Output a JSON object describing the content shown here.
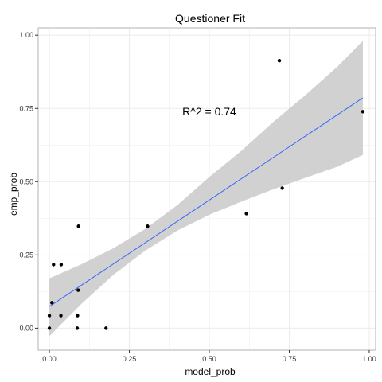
{
  "chart_data": {
    "type": "scatter",
    "title": "Questioner Fit",
    "xlabel": "model_prob",
    "ylabel": "emp_prob",
    "xlim": [
      -0.035,
      1.02
    ],
    "ylim": [
      -0.075,
      1.025
    ],
    "x_ticks": [
      0.0,
      0.25,
      0.5,
      0.75,
      1.0
    ],
    "x_tick_labels": [
      "0.00",
      "0.25",
      "0.50",
      "0.75",
      "1.00"
    ],
    "y_ticks": [
      0.0,
      0.25,
      0.5,
      0.75,
      1.0
    ],
    "y_tick_labels": [
      "0.00",
      "0.25",
      "0.50",
      "0.75",
      "1.00"
    ],
    "grid": true,
    "legend": "none",
    "points": [
      {
        "x": 0.0,
        "y": 0.0
      },
      {
        "x": 0.0,
        "y": 0.043
      },
      {
        "x": 0.008,
        "y": 0.087
      },
      {
        "x": 0.013,
        "y": 0.217
      },
      {
        "x": 0.036,
        "y": 0.043
      },
      {
        "x": 0.037,
        "y": 0.217
      },
      {
        "x": 0.087,
        "y": 0.0
      },
      {
        "x": 0.088,
        "y": 0.043
      },
      {
        "x": 0.09,
        "y": 0.13
      },
      {
        "x": 0.091,
        "y": 0.348
      },
      {
        "x": 0.177,
        "y": 0.0
      },
      {
        "x": 0.307,
        "y": 0.348
      },
      {
        "x": 0.616,
        "y": 0.391
      },
      {
        "x": 0.719,
        "y": 0.913
      },
      {
        "x": 0.728,
        "y": 0.478
      },
      {
        "x": 0.98,
        "y": 0.739
      }
    ],
    "fit_line": {
      "x": [
        0.0,
        0.98
      ],
      "y": [
        0.074,
        0.786
      ]
    },
    "confidence_band": {
      "x": [
        0.0,
        0.1,
        0.2,
        0.3,
        0.4,
        0.5,
        0.6,
        0.7,
        0.8,
        0.9,
        0.98
      ],
      "lower": [
        -0.027,
        0.083,
        0.182,
        0.265,
        0.333,
        0.387,
        0.432,
        0.474,
        0.513,
        0.551,
        0.591
      ],
      "upper": [
        0.17,
        0.218,
        0.273,
        0.339,
        0.42,
        0.516,
        0.605,
        0.704,
        0.795,
        0.892,
        0.981
      ]
    },
    "annotation": {
      "text": "R^2 =  0.74",
      "x": 0.5,
      "y": 0.74
    },
    "colors": {
      "fit_line": "#3366ff",
      "band": "#cfcfcf",
      "points": "#000000",
      "grid": "#ececec",
      "panel_border": "#b3b3b3",
      "tick": "#333333"
    }
  }
}
